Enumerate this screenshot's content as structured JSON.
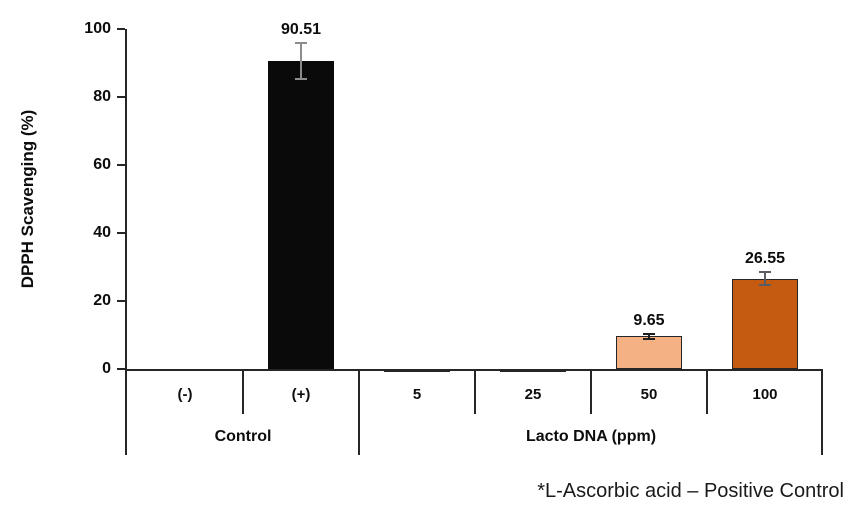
{
  "chart_data": {
    "type": "bar",
    "title": "",
    "ylabel": "DPPH Scavenging (%)",
    "xlabel": "",
    "ylim": [
      0,
      100
    ],
    "yticks": [
      0,
      20,
      40,
      60,
      80,
      100
    ],
    "grid": false,
    "legend": "none",
    "groups": [
      {
        "label": "Control",
        "bars": [
          {
            "category": "(-)",
            "value": 0,
            "data_label": "",
            "error": 0,
            "fill": "#ffffff",
            "border": "none",
            "error_color": "#262626"
          },
          {
            "category": "(+)",
            "value": 90.51,
            "data_label": "90.51",
            "error": 5.0,
            "fill": "#0a0a0a",
            "border": "#0a0a0a",
            "error_color": "#8c8c8c"
          }
        ]
      },
      {
        "label": "Lacto DNA (ppm)",
        "bars": [
          {
            "category": "5",
            "value": -0.5,
            "data_label": "",
            "error": 0,
            "fill": "#f4b183",
            "border": "#262626",
            "error_color": "#262626"
          },
          {
            "category": "25",
            "value": -0.5,
            "data_label": "",
            "error": 0,
            "fill": "#f4b183",
            "border": "#262626",
            "error_color": "#262626"
          },
          {
            "category": "50",
            "value": 9.65,
            "data_label": "9.65",
            "error": 0.4,
            "fill": "#f4b183",
            "border": "#262626",
            "error_color": "#1f1f1f"
          },
          {
            "category": "100",
            "value": 26.55,
            "data_label": "26.55",
            "error": 1.6,
            "fill": "#c55a11",
            "border": "#262626",
            "error_color": "#5a5d63"
          }
        ]
      }
    ],
    "footnote": "*L-Ascorbic acid – Positive Control",
    "axis_color": "#262626"
  }
}
